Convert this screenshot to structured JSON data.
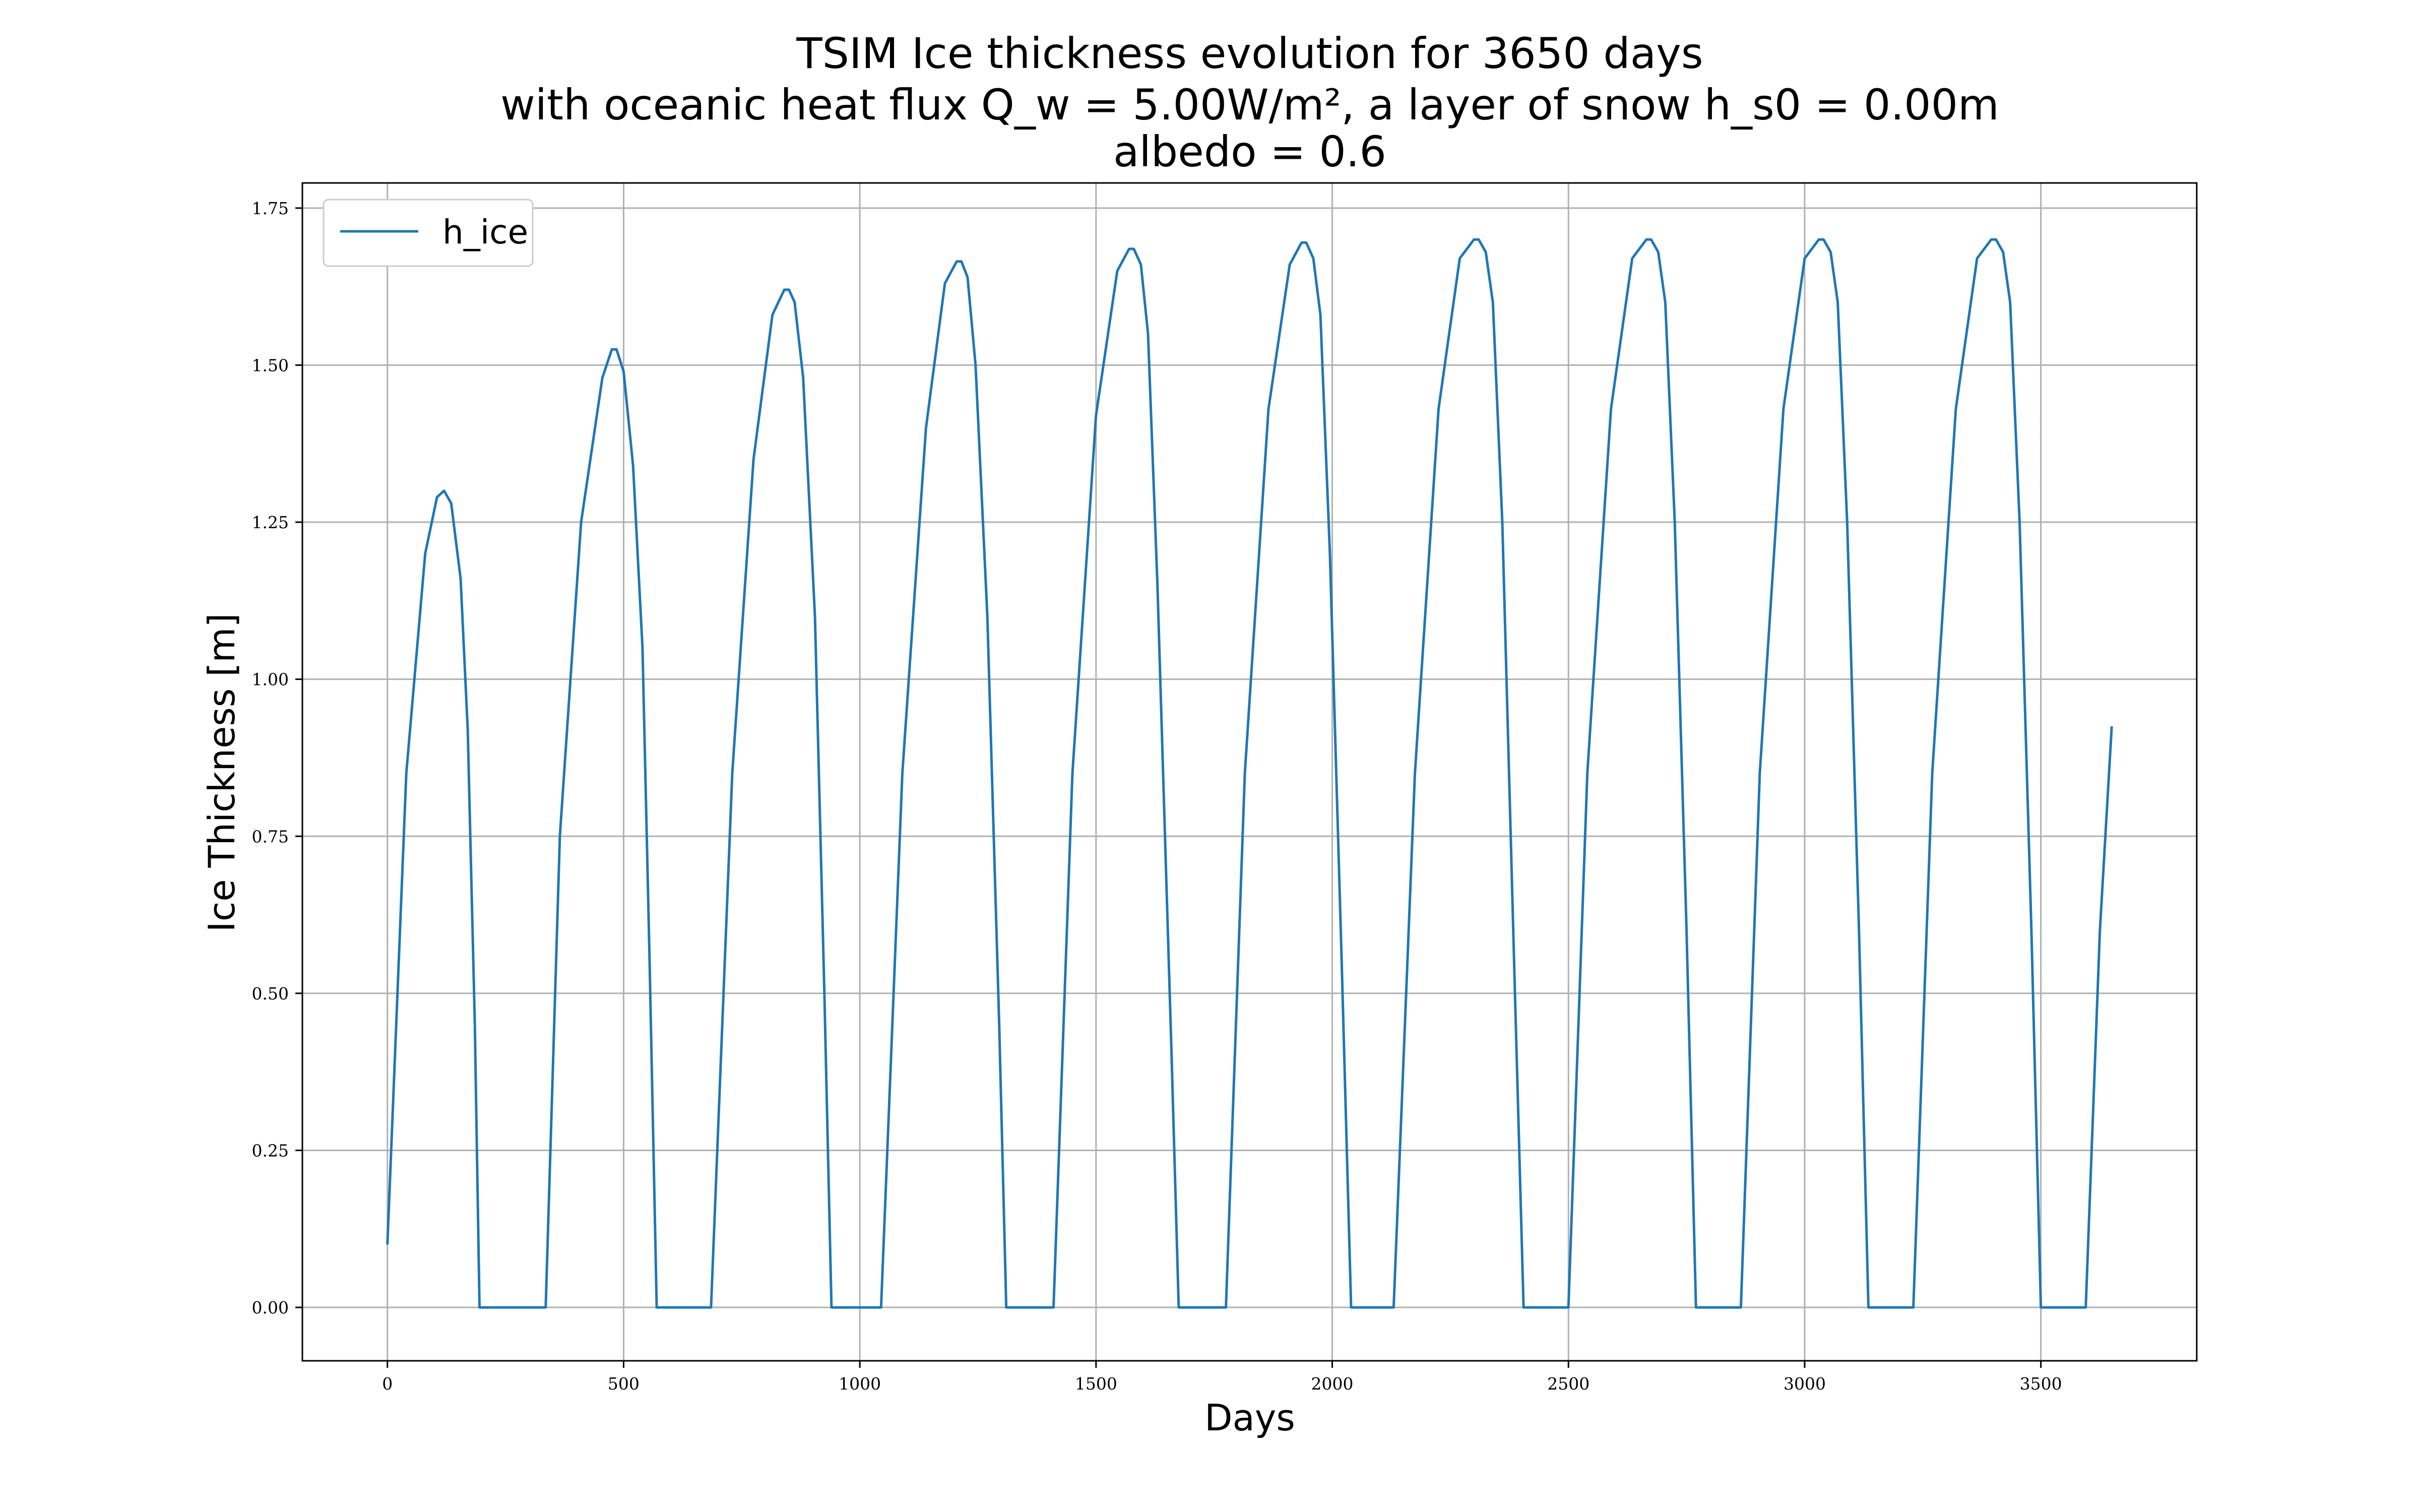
{
  "chart_data": {
    "type": "line",
    "title": [
      "TSIM Ice thickness evolution for 3650 days",
      "with oceanic heat flux Q_w = 5.00W/m², a layer of snow h_s0 = 0.00m",
      "albedo = 0.6"
    ],
    "xlabel": "Days",
    "ylabel": "Ice Thickness [m]",
    "xlim": [
      -180,
      3830
    ],
    "ylim": [
      -0.085,
      1.79
    ],
    "xticks": [
      0,
      500,
      1000,
      1500,
      2000,
      2500,
      3000,
      3500
    ],
    "xtick_labels": [
      "0",
      "500",
      "1000",
      "1500",
      "2000",
      "2500",
      "3000",
      "3500"
    ],
    "yticks": [
      0,
      0.25,
      0.5,
      0.75,
      1.0,
      1.25,
      1.5,
      1.75
    ],
    "ytick_labels": [
      "0.00",
      "0.25",
      "0.50",
      "0.75",
      "1.00",
      "1.25",
      "1.50",
      "1.75"
    ],
    "grid": true,
    "legend_position": "top-left",
    "series": [
      {
        "name": "h_ice",
        "color": "#1f77b4",
        "x": [
          0,
          40,
          80,
          105,
          120,
          135,
          155,
          170,
          185,
          195,
          335,
          365,
          410,
          455,
          475,
          485,
          500,
          520,
          540,
          555,
          570,
          685,
          730,
          775,
          815,
          840,
          850,
          862,
          880,
          905,
          925,
          940,
          1045,
          1090,
          1140,
          1180,
          1205,
          1215,
          1228,
          1245,
          1270,
          1295,
          1310,
          1410,
          1450,
          1500,
          1545,
          1570,
          1580,
          1595,
          1610,
          1630,
          1660,
          1675,
          1775,
          1815,
          1865,
          1910,
          1935,
          1945,
          1960,
          1975,
          1995,
          2020,
          2040,
          2130,
          2175,
          2225,
          2270,
          2300,
          2310,
          2325,
          2340,
          2360,
          2385,
          2405,
          2500,
          2540,
          2590,
          2635,
          2665,
          2675,
          2690,
          2705,
          2725,
          2750,
          2770,
          2865,
          2905,
          2955,
          3000,
          3030,
          3040,
          3055,
          3070,
          3090,
          3115,
          3135,
          3230,
          3270,
          3320,
          3365,
          3395,
          3405,
          3420,
          3435,
          3455,
          3480,
          3500,
          3595,
          3625,
          3650
        ],
        "y": [
          0.1,
          0.85,
          1.2,
          1.29,
          1.3,
          1.28,
          1.16,
          0.92,
          0.45,
          0.0,
          0.0,
          0.75,
          1.25,
          1.48,
          1.525,
          1.525,
          1.49,
          1.34,
          1.05,
          0.55,
          0.0,
          0.0,
          0.85,
          1.35,
          1.58,
          1.62,
          1.62,
          1.6,
          1.48,
          1.1,
          0.5,
          0.0,
          0.0,
          0.85,
          1.4,
          1.63,
          1.665,
          1.665,
          1.64,
          1.5,
          1.1,
          0.45,
          0.0,
          0.0,
          0.85,
          1.42,
          1.65,
          1.685,
          1.685,
          1.66,
          1.55,
          1.15,
          0.4,
          0.0,
          0.0,
          0.85,
          1.43,
          1.66,
          1.695,
          1.695,
          1.67,
          1.58,
          1.2,
          0.55,
          0.0,
          0.0,
          0.85,
          1.43,
          1.67,
          1.7,
          1.7,
          1.68,
          1.6,
          1.25,
          0.55,
          0.0,
          0.0,
          0.85,
          1.43,
          1.67,
          1.7,
          1.7,
          1.68,
          1.6,
          1.25,
          0.6,
          0.0,
          0.0,
          0.85,
          1.43,
          1.67,
          1.7,
          1.7,
          1.68,
          1.6,
          1.25,
          0.6,
          0.0,
          0.0,
          0.85,
          1.43,
          1.67,
          1.7,
          1.7,
          1.68,
          1.6,
          1.25,
          0.6,
          0.0,
          0.0,
          0.6,
          0.925
        ]
      }
    ]
  }
}
